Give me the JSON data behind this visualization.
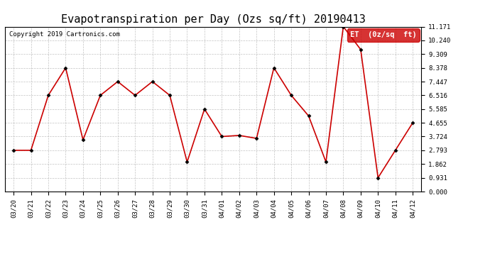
{
  "title": "Evapotranspiration per Day (Ozs sq/ft) 20190413",
  "copyright": "Copyright 2019 Cartronics.com",
  "legend_label": "ET  (0z/sq  ft)",
  "dates": [
    "03/20",
    "03/21",
    "03/22",
    "03/23",
    "03/24",
    "03/25",
    "03/26",
    "03/27",
    "03/28",
    "03/29",
    "03/30",
    "03/31",
    "04/01",
    "04/02",
    "04/03",
    "04/04",
    "04/05",
    "04/06",
    "04/07",
    "04/08",
    "04/09",
    "04/10",
    "04/11",
    "04/12"
  ],
  "values": [
    2.793,
    2.793,
    6.516,
    8.378,
    3.5,
    6.516,
    7.447,
    6.516,
    7.447,
    6.516,
    2.0,
    5.585,
    3.724,
    3.8,
    3.6,
    8.378,
    6.516,
    5.12,
    2.0,
    11.171,
    9.62,
    0.931,
    2.793,
    4.655
  ],
  "yticks": [
    0.0,
    0.931,
    1.862,
    2.793,
    3.724,
    4.655,
    5.585,
    6.516,
    7.447,
    8.378,
    9.309,
    10.24,
    11.171
  ],
  "ylim": [
    0.0,
    11.171
  ],
  "line_color": "#cc0000",
  "marker_color": "#000000",
  "bg_color": "#ffffff",
  "grid_color": "#aaaaaa",
  "title_fontsize": 11,
  "copyright_fontsize": 6.5,
  "tick_fontsize": 6.5,
  "legend_bg": "#cc0000",
  "legend_text_color": "#ffffff",
  "legend_fontsize": 7.5
}
